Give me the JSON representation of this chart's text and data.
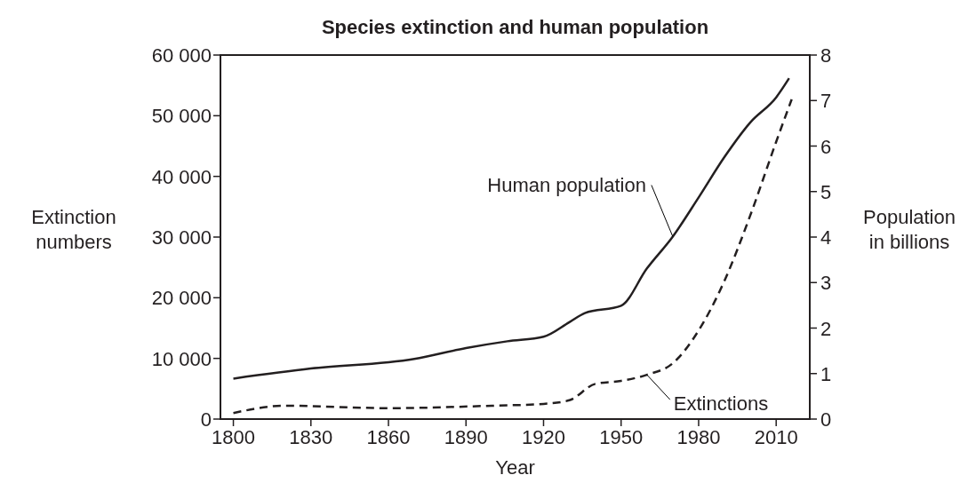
{
  "chart_data": {
    "type": "line",
    "title": "Species extinction and human population",
    "xlabel": "Year",
    "ylabel": "Extinction numbers",
    "y2label": "Population in billions",
    "xlim": [
      1795,
      2023
    ],
    "xticks": [
      1800,
      1830,
      1860,
      1890,
      1920,
      1950,
      1980,
      2010
    ],
    "ylim": [
      0,
      60000
    ],
    "yticks": [
      0,
      {
        "value": 10000,
        "label": "10 000"
      },
      {
        "value": 20000,
        "label": "20 000"
      },
      {
        "value": 30000,
        "label": "30 000"
      },
      {
        "value": 40000,
        "label": "40 000"
      },
      {
        "value": 50000,
        "label": "50 000"
      },
      {
        "value": 60000,
        "label": "60 000"
      }
    ],
    "y2lim": [
      0,
      8
    ],
    "y2ticks": [
      0,
      1,
      2,
      3,
      4,
      5,
      6,
      7,
      8
    ],
    "grid": false,
    "marker": "none",
    "series": [
      {
        "name": "Human population",
        "color": "#231f20",
        "axis": "y2",
        "line_style": "solid",
        "x": [
          1800,
          1830,
          1870,
          1890,
          1906,
          1920,
          1930,
          1936,
          1950,
          1960,
          1970,
          1980,
          1990,
          2000,
          2010,
          2015
        ],
        "values": [
          0.89,
          1.11,
          1.32,
          1.56,
          1.71,
          1.81,
          2.13,
          2.33,
          2.49,
          3.31,
          4.01,
          4.87,
          5.76,
          6.52,
          7.07,
          7.49
        ]
      },
      {
        "name": "Extinctions",
        "color": "#231f20",
        "line_style": "dashed",
        "x": [
          1800,
          1820,
          1860,
          1900,
          1920,
          1930,
          1940,
          1950,
          1960,
          1970,
          1980,
          1990,
          2000,
          2010,
          2016
        ],
        "values": [
          1000,
          2200,
          1800,
          2200,
          2500,
          3100,
          5800,
          6300,
          7300,
          9200,
          14600,
          22800,
          33600,
          45700,
          52700
        ]
      }
    ]
  }
}
